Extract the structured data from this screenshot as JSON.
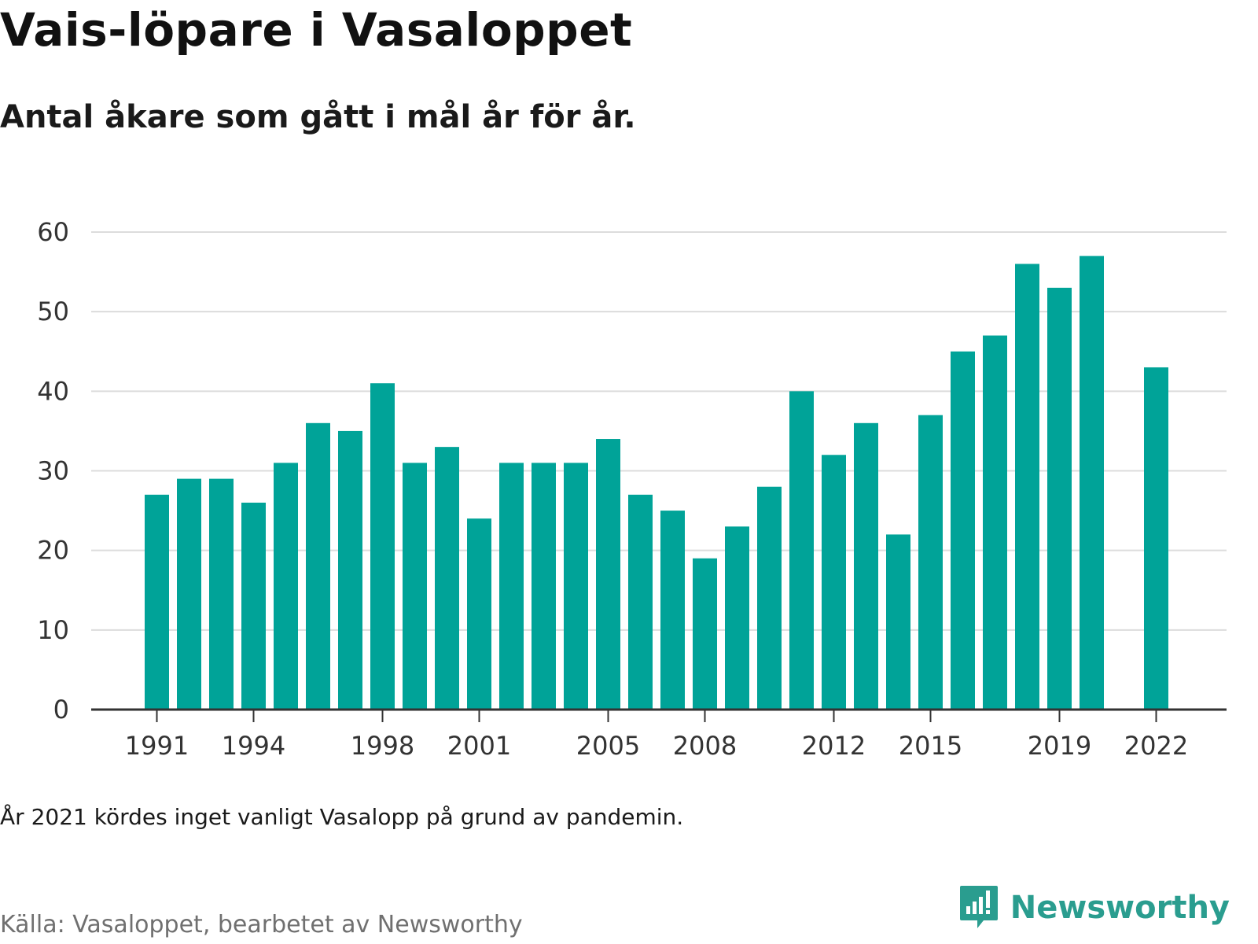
{
  "header": {
    "title": "Vais-löpare i Vasaloppet",
    "subtitle": "Antal åkare som gått i mål år för år."
  },
  "footer": {
    "note": "År 2021 kördes inget vanligt Vasalopp på grund av pandemin.",
    "source": "Källa: Vasaloppet, bearbetet av Newsworthy",
    "brand": "Newsworthy",
    "brand_icon": "newsworthy-logo-icon"
  },
  "colors": {
    "bar": "#00a398",
    "grid": "#dcdcdc",
    "axis": "#333333",
    "tick_text": "#333333",
    "brand": "#2a9d8f",
    "source_text": "#707070"
  },
  "chart_data": {
    "type": "bar",
    "title": "Vais-löpare i Vasaloppet",
    "subtitle": "Antal åkare som gått i mål år för år.",
    "xlabel": "",
    "ylabel": "",
    "ylim": [
      0,
      60
    ],
    "yticks": [
      0,
      10,
      20,
      30,
      40,
      50,
      60
    ],
    "xticks": [
      "1991",
      "1994",
      "1998",
      "2001",
      "2005",
      "2008",
      "2012",
      "2015",
      "2019",
      "2022"
    ],
    "grid": true,
    "legend": "none",
    "categories": [
      "1991",
      "1992",
      "1993",
      "1994",
      "1995",
      "1996",
      "1997",
      "1998",
      "1999",
      "2000",
      "2001",
      "2002",
      "2003",
      "2004",
      "2005",
      "2006",
      "2007",
      "2008",
      "2009",
      "2010",
      "2011",
      "2012",
      "2013",
      "2014",
      "2015",
      "2016",
      "2017",
      "2018",
      "2019",
      "2020",
      "2021",
      "2022"
    ],
    "values": [
      27,
      29,
      29,
      26,
      31,
      36,
      35,
      41,
      31,
      33,
      24,
      31,
      31,
      31,
      34,
      27,
      25,
      19,
      23,
      28,
      40,
      32,
      36,
      22,
      37,
      45,
      47,
      56,
      53,
      57,
      null,
      43
    ]
  }
}
